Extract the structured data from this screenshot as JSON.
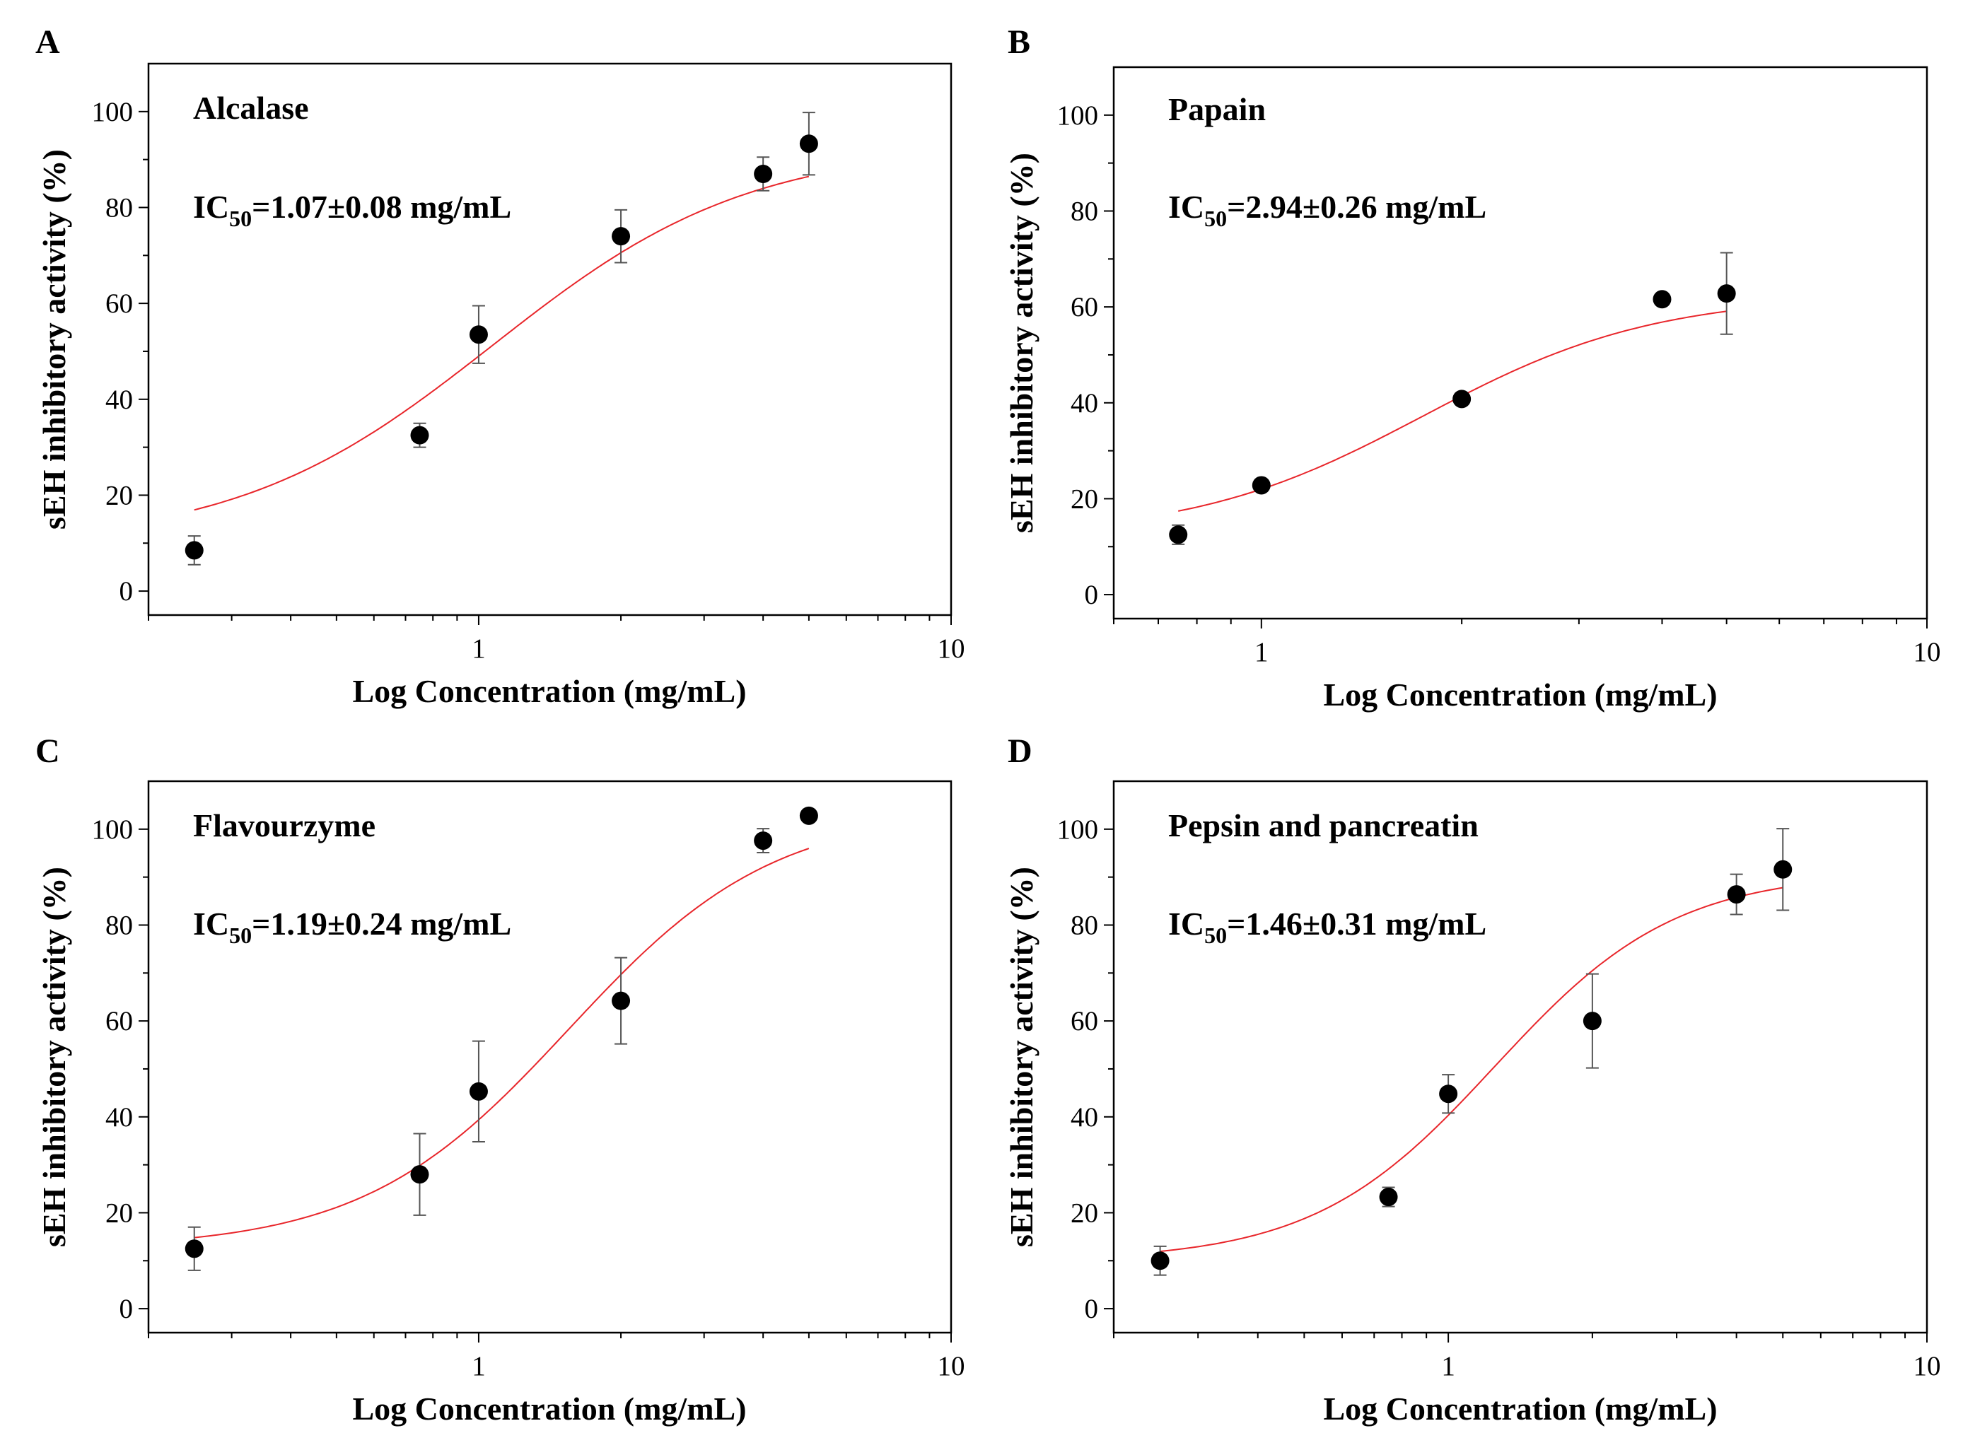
{
  "chart_data": [
    {
      "type": "scatter",
      "panel": "A",
      "enzyme": "Alcalase",
      "ic50": {
        "prefix": "IC",
        "sub": "50",
        "value": "=1.07±0.08 mg/mL"
      },
      "xlabel": "Log Concentration (mg/mL)",
      "ylabel": "sEH inhibitory activity (%)",
      "xscale": "log",
      "xlim": [
        0.2,
        10
      ],
      "ylim": [
        -5,
        110
      ],
      "xticks": [
        1,
        10
      ],
      "xtick_labels": [
        "1",
        "10"
      ],
      "yticks": [
        0,
        20,
        40,
        60,
        80,
        100
      ],
      "ytick_labels": [
        "0",
        "20",
        "40",
        "60",
        "80",
        "100"
      ],
      "points": [
        {
          "x": 0.25,
          "y": 8.5,
          "err": 3
        },
        {
          "x": 0.75,
          "y": 32.5,
          "err": 2.5
        },
        {
          "x": 1.0,
          "y": 53.5,
          "err": 6
        },
        {
          "x": 2.0,
          "y": 74,
          "err": 5.5
        },
        {
          "x": 4.0,
          "y": 87,
          "err": 3.5
        },
        {
          "x": 5.0,
          "y": 93.3,
          "err": 6.5
        }
      ],
      "fit": {
        "bottom": 9.5,
        "top": 93,
        "ec50": 1.07,
        "hill": 1.6,
        "x_from": 0.25,
        "x_to": 5.0
      }
    },
    {
      "type": "scatter",
      "panel": "B",
      "enzyme": "Papain",
      "ic50": {
        "prefix": "IC",
        "sub": "50",
        "value": "=2.94±0.26 mg/mL"
      },
      "xlabel": "Log Concentration (mg/mL)",
      "ylabel": "sEH inhibitory activity (%)",
      "xscale": "log",
      "xlim": [
        0.6,
        10
      ],
      "ylim": [
        -5,
        110
      ],
      "xticks": [
        1,
        10
      ],
      "xtick_labels": [
        "1",
        "10"
      ],
      "yticks": [
        0,
        20,
        40,
        60,
        80,
        100
      ],
      "ytick_labels": [
        "0",
        "20",
        "40",
        "60",
        "80",
        "100"
      ],
      "points": [
        {
          "x": 0.75,
          "y": 12.5,
          "err": 2
        },
        {
          "x": 1.0,
          "y": 22.8,
          "err": 0
        },
        {
          "x": 2.0,
          "y": 40.8,
          "err": 0
        },
        {
          "x": 4.0,
          "y": 61.6,
          "err": 0
        },
        {
          "x": 5.0,
          "y": 62.8,
          "err": 8.5
        }
      ],
      "fit": {
        "bottom": 12,
        "top": 62.5,
        "ec50": 1.75,
        "hill": 2.5,
        "x_from": 0.75,
        "x_to": 5.0
      }
    },
    {
      "type": "scatter",
      "panel": "C",
      "enzyme": "Flavourzyme",
      "ic50": {
        "prefix": "IC",
        "sub": "50",
        "value": "=1.19±0.24 mg/mL"
      },
      "xlabel": "Log Concentration (mg/mL)",
      "ylabel": "sEH inhibitory activity (%)",
      "xscale": "log",
      "xlim": [
        0.2,
        10
      ],
      "ylim": [
        -5,
        110
      ],
      "xticks": [
        1,
        10
      ],
      "xtick_labels": [
        "1",
        "10"
      ],
      "yticks": [
        0,
        20,
        40,
        60,
        80,
        100
      ],
      "ytick_labels": [
        "0",
        "20",
        "40",
        "60",
        "80",
        "100"
      ],
      "points": [
        {
          "x": 0.25,
          "y": 12.5,
          "err": 4.5
        },
        {
          "x": 0.75,
          "y": 28,
          "err": 8.5
        },
        {
          "x": 1.0,
          "y": 45.3,
          "err": 10.5
        },
        {
          "x": 2.0,
          "y": 64.2,
          "err": 9
        },
        {
          "x": 4.0,
          "y": 97.6,
          "err": 2.5
        },
        {
          "x": 5.0,
          "y": 102.8,
          "err": 0
        }
      ],
      "fit": {
        "bottom": 12.5,
        "top": 104,
        "ec50": 1.55,
        "hill": 2.0,
        "x_from": 0.25,
        "x_to": 5.0
      }
    },
    {
      "type": "scatter",
      "panel": "D",
      "enzyme": "Pepsin and pancreatin",
      "ic50": {
        "prefix": "IC",
        "sub": "50",
        "value": "=1.46±0.31 mg/mL"
      },
      "xlabel": "Log Concentration (mg/mL)",
      "ylabel": "sEH inhibitory activity (%)",
      "xscale": "log",
      "xlim": [
        0.2,
        10
      ],
      "ylim": [
        -5,
        110
      ],
      "xticks": [
        1,
        10
      ],
      "xtick_labels": [
        "1",
        "10"
      ],
      "yticks": [
        0,
        20,
        40,
        60,
        80,
        100
      ],
      "ytick_labels": [
        "0",
        "20",
        "40",
        "60",
        "80",
        "100"
      ],
      "points": [
        {
          "x": 0.25,
          "y": 10,
          "err": 3
        },
        {
          "x": 0.75,
          "y": 23.3,
          "err": 2
        },
        {
          "x": 1.0,
          "y": 44.8,
          "err": 4
        },
        {
          "x": 2.0,
          "y": 60,
          "err": 9.8
        },
        {
          "x": 4.0,
          "y": 86.4,
          "err": 4.2
        },
        {
          "x": 5.0,
          "y": 91.6,
          "err": 8.5
        }
      ],
      "fit": {
        "bottom": 10,
        "top": 91,
        "ec50": 1.25,
        "hill": 2.3,
        "x_from": 0.25,
        "x_to": 5.0
      }
    }
  ]
}
